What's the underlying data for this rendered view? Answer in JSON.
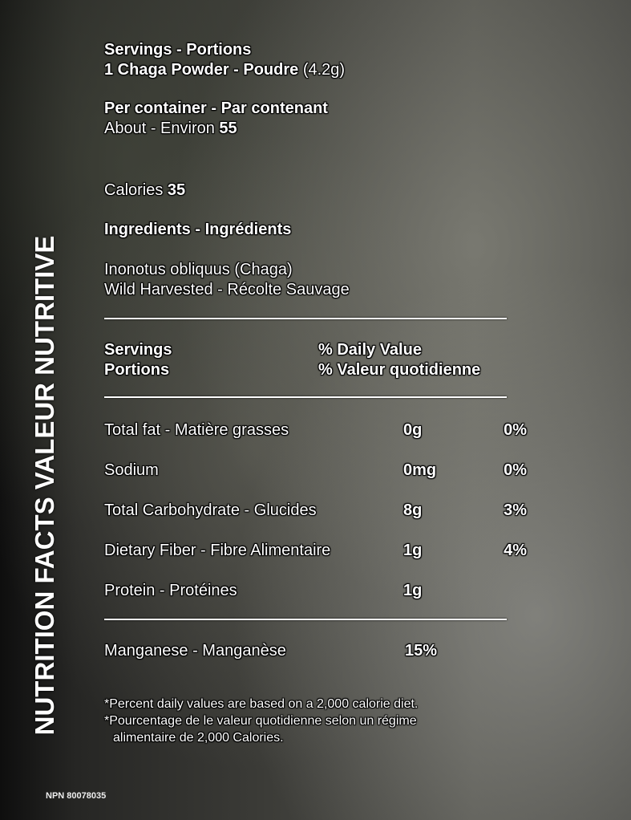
{
  "side_title": "NUTRITION FACTS  VALEUR NUTRITIVE",
  "serving": {
    "heading": "Servings - Portions",
    "size_label": "1 Chaga Powder - Poudre",
    "size_amount": "(4.2g)"
  },
  "container": {
    "heading": "Per container - Par contenant",
    "label": "About - Environ",
    "value": "55"
  },
  "calories": {
    "label": "Calories",
    "value": "35"
  },
  "ingredients": {
    "heading": "Ingredients - Ingrédients",
    "lines": [
      "Inonotus obliquus (Chaga)",
      "Wild Harvested - Récolte Sauvage"
    ]
  },
  "table_header": {
    "servings": "Servings",
    "portions": "Portions",
    "dv_en": "% Daily Value",
    "dv_fr": "% Valeur quotidienne"
  },
  "nutrients": [
    {
      "name": "Total fat - Matière grasses",
      "amount": "0g",
      "dv": "0%"
    },
    {
      "name": "Sodium",
      "amount": "0mg",
      "dv": "0%"
    },
    {
      "name": "Total Carbohydrate - Glucides",
      "amount": "8g",
      "dv": "3%"
    },
    {
      "name": "Dietary Fiber - Fibre Alimentaire",
      "amount": "1g",
      "dv": "4%"
    },
    {
      "name": "Protein - Protéines",
      "amount": "1g",
      "dv": ""
    }
  ],
  "mineral": {
    "name": "Manganese - Manganèse",
    "dv": "15%"
  },
  "footnotes": [
    "*Percent daily values are based on a 2,000 calorie diet.",
    "*Pourcentage de le valeur quotidienne selon un régime",
    "alimentaire de 2,000 Calories."
  ],
  "npn": "NPN 80078035"
}
